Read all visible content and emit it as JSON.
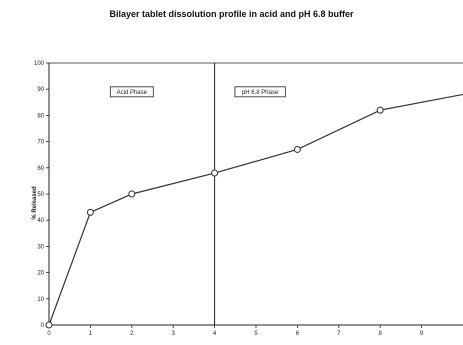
{
  "chart_data": {
    "type": "line",
    "title": "Bilayer tablet dissolution profile in acid and pH 6.8 buffer",
    "xlabel": "",
    "ylabel": "% Released",
    "xlim": [
      0,
      10
    ],
    "ylim": [
      0,
      100
    ],
    "x_ticks": [
      0,
      1,
      2,
      3,
      4,
      5,
      6,
      7,
      8,
      9
    ],
    "y_ticks": [
      0,
      10,
      20,
      30,
      40,
      50,
      60,
      70,
      80,
      90,
      100
    ],
    "grid": false,
    "series": [
      {
        "x": [
          0,
          1,
          2,
          4,
          6,
          8,
          10
        ],
        "y": [
          0,
          43,
          50,
          58,
          67,
          82,
          88
        ]
      }
    ],
    "phase_divider_x": 4,
    "annotations": [
      {
        "text": "Acid Phase",
        "x": 2,
        "y": 89
      },
      {
        "text": "pH 6.8 Phase",
        "x": 5.1,
        "y": 89
      }
    ]
  },
  "style": {
    "line_color": "#333333",
    "marker_fill": "#ffffff",
    "axis_color": "#222222"
  }
}
